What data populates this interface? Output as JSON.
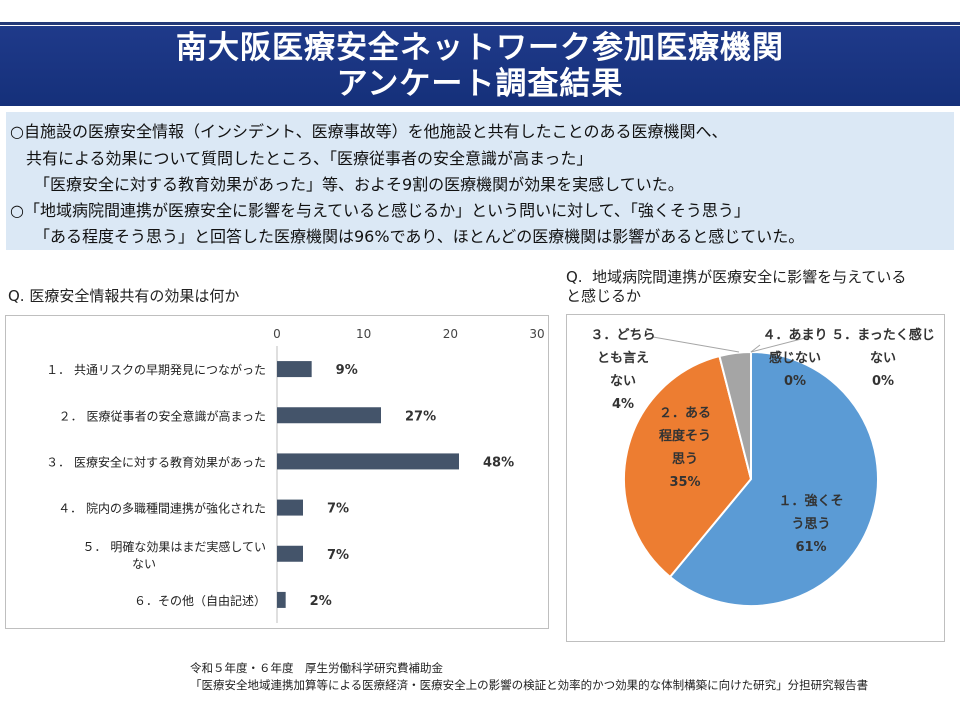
{
  "header": {
    "title_line1": "南大阪医療安全ネットワーク参加医療機関",
    "title_line2": "アンケート調査結果"
  },
  "summary": {
    "line1": "○自施設の医療安全情報（インシデント、医療事故等）を他施設と共有したことのある医療機関へ、",
    "line2": "共有による効果について質問したところ、「医療従事者の安全意識が高まった」",
    "line3": "「医療安全に対する教育効果があった」等、およそ9割の医療機関が効果を実感していた。",
    "line4": "○「地域病院間連携が医療安全に影響を与えていると感じるか」という問いに対して、「強くそう思う」",
    "line5": "「ある程度そう思う」と回答した医療機関は96%であり、ほとんどの医療機関は影響があると感じていた。"
  },
  "chart_data": [
    {
      "type": "bar",
      "orientation": "horizontal",
      "title": "Q.  医療安全情報共有の効果は何か",
      "categories": [
        "１．  共通リスクの早期発見につながった",
        "２．  医療従事者の安全意識が高まった",
        "３．  医療安全に対する教育効果があった",
        "４．   院内の多職種間連携が強化された",
        [
          "５．   明確な効果はまだ実感してい",
          "ない"
        ],
        "６．その他（自由記述）"
      ],
      "values": [
        4,
        12,
        21,
        3,
        3,
        1
      ],
      "data_labels": [
        "9%",
        "27%",
        "48%",
        "7%",
        "7%",
        "2%"
      ],
      "xlim": [
        0,
        30
      ],
      "xticks": [
        "0",
        "10",
        "20",
        "30"
      ],
      "bar_color": "#44546a",
      "grid": false
    },
    {
      "type": "pie",
      "title": "Q.  地域病院間連携が医療安全に影響を与えている\nと感じるか",
      "slices": [
        {
          "label": [
            "１．強くそ",
            "う思う"
          ],
          "value": 61,
          "value_label": "61%",
          "color": "#5b9bd5"
        },
        {
          "label": [
            "２．ある",
            "程度そう",
            "思う"
          ],
          "value": 35,
          "value_label": "35%",
          "color": "#ed7d31"
        },
        {
          "label": [
            "３．どちら",
            "とも言え",
            "ない"
          ],
          "value": 4,
          "value_label": "4%",
          "color": "#a5a5a5"
        },
        {
          "label": [
            "４．あまり",
            "感じない"
          ],
          "value": 0,
          "value_label": "0%",
          "color": "#ffc000"
        },
        {
          "label": [
            "５．まったく感じ",
            "ない"
          ],
          "value": 0,
          "value_label": "0%",
          "color": "#4472c4"
        }
      ]
    }
  ],
  "footer": {
    "line1": "令和５年度・６年度　厚生労働科学研究費補助金",
    "line2": "「医療安全地域連携加算等による医療経済・医療安全上の影響の検証と効率的かつ効果的な体制構築に向けた研究」分担研究報告書"
  }
}
